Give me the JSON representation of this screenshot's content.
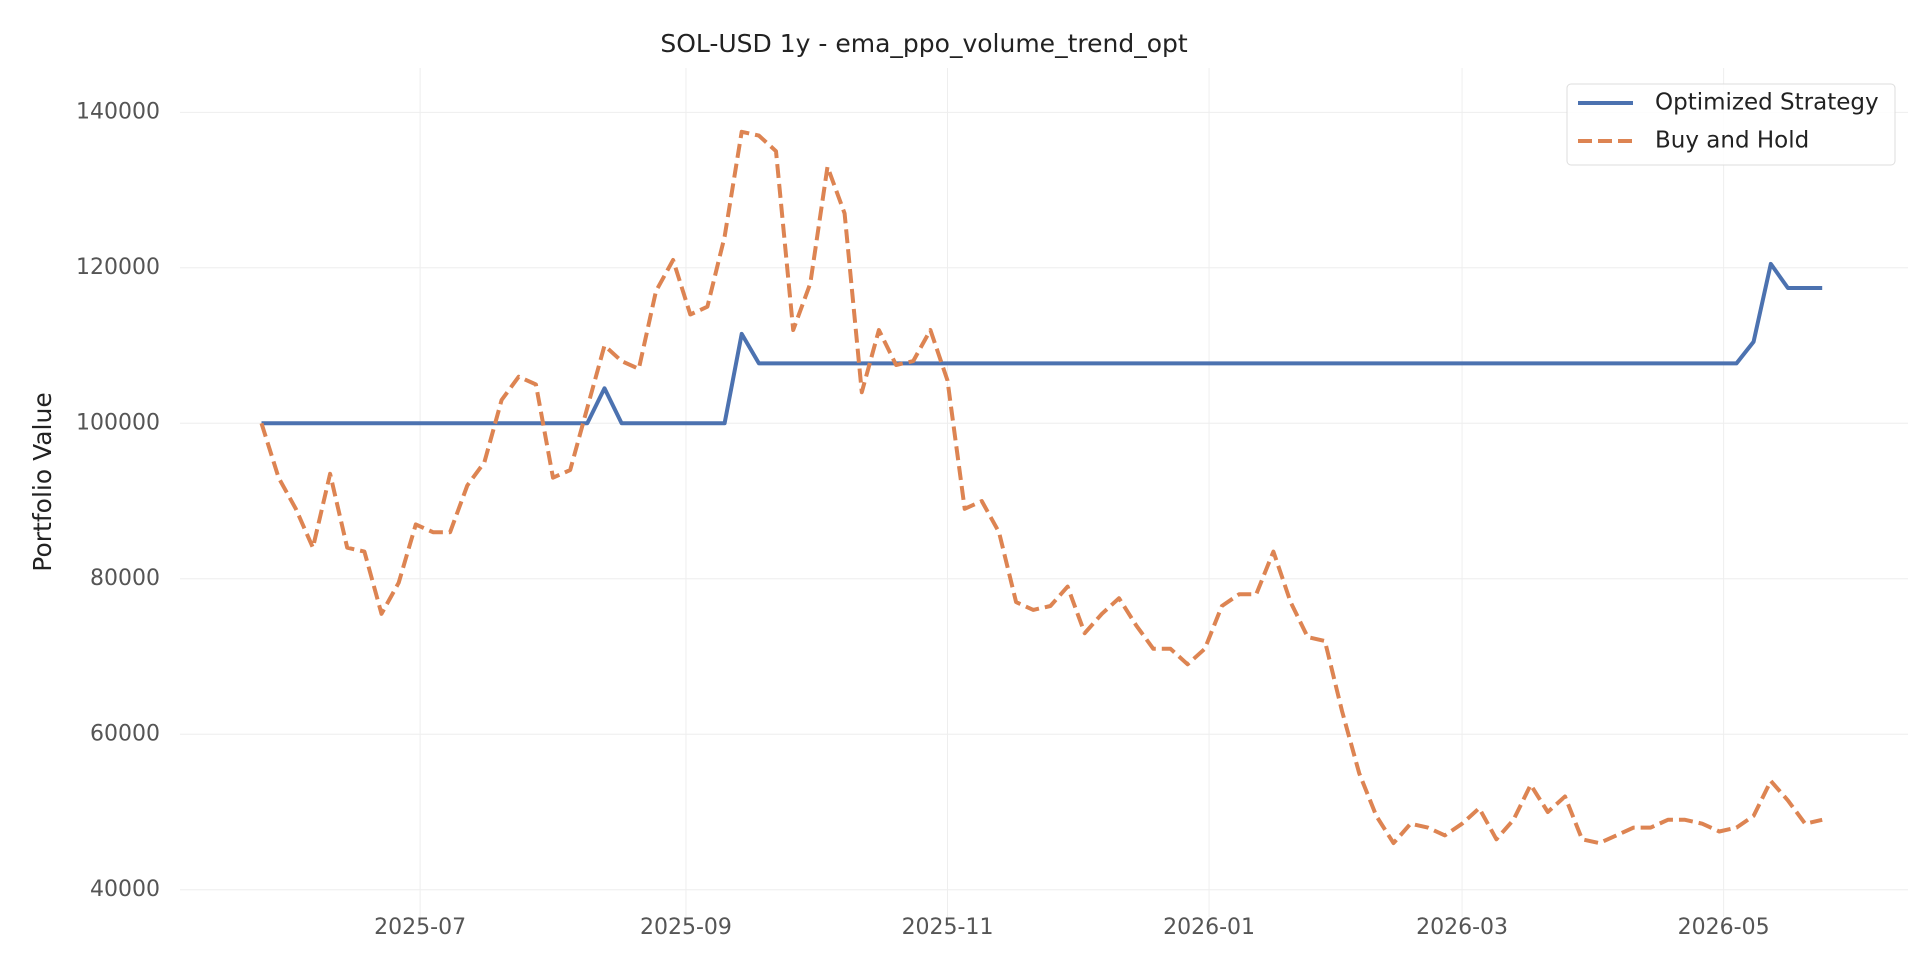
{
  "chart_data": {
    "type": "line",
    "title": "SOL-USD 1y - ema_ppo_volume_trend_opt",
    "y_label": "Portfolio Value",
    "x": [
      "2025-05-25",
      "2025-05-29",
      "2025-06-02",
      "2025-06-06",
      "2025-06-10",
      "2025-06-14",
      "2025-06-18",
      "2025-06-22",
      "2025-06-26",
      "2025-06-30",
      "2025-07-04",
      "2025-07-08",
      "2025-07-12",
      "2025-07-16",
      "2025-07-20",
      "2025-07-24",
      "2025-07-28",
      "2025-08-01",
      "2025-08-05",
      "2025-08-09",
      "2025-08-13",
      "2025-08-17",
      "2025-08-21",
      "2025-08-25",
      "2025-08-29",
      "2025-09-02",
      "2025-09-06",
      "2025-09-10",
      "2025-09-14",
      "2025-09-18",
      "2025-09-22",
      "2025-09-26",
      "2025-09-30",
      "2025-10-04",
      "2025-10-08",
      "2025-10-12",
      "2025-10-16",
      "2025-10-20",
      "2025-10-24",
      "2025-10-28",
      "2025-11-01",
      "2025-11-05",
      "2025-11-09",
      "2025-11-13",
      "2025-11-17",
      "2025-11-21",
      "2025-11-25",
      "2025-11-29",
      "2025-12-03",
      "2025-12-07",
      "2025-12-11",
      "2025-12-15",
      "2025-12-19",
      "2025-12-23",
      "2025-12-27",
      "2025-12-31",
      "2026-01-04",
      "2026-01-08",
      "2026-01-12",
      "2026-01-16",
      "2026-01-20",
      "2026-01-24",
      "2026-01-28",
      "2026-02-01",
      "2026-02-05",
      "2026-02-09",
      "2026-02-13",
      "2026-02-17",
      "2026-02-21",
      "2026-02-25",
      "2026-03-01",
      "2026-03-05",
      "2026-03-09",
      "2026-03-13",
      "2026-03-17",
      "2026-03-21",
      "2026-03-25",
      "2026-03-29",
      "2026-04-02",
      "2026-04-06",
      "2026-04-10",
      "2026-04-14",
      "2026-04-18",
      "2026-04-22",
      "2026-04-26",
      "2026-04-30",
      "2026-05-04",
      "2026-05-08",
      "2026-05-12",
      "2026-05-16",
      "2026-05-20",
      "2026-05-24"
    ],
    "series": [
      {
        "name": "Optimized Strategy",
        "color": "#4c72b0",
        "linestyle": "solid",
        "values": [
          100000,
          100000,
          100000,
          100000,
          100000,
          100000,
          100000,
          100000,
          100000,
          100000,
          100000,
          100000,
          100000,
          100000,
          100000,
          100000,
          100000,
          100000,
          100000,
          100000,
          104500,
          100000,
          100000,
          100000,
          100000,
          100000,
          100000,
          100000,
          111500,
          107700,
          107700,
          107700,
          107700,
          107700,
          107700,
          107700,
          107700,
          107700,
          107700,
          107700,
          107700,
          107700,
          107700,
          107700,
          107700,
          107700,
          107700,
          107700,
          107700,
          107700,
          107700,
          107700,
          107700,
          107700,
          107700,
          107700,
          107700,
          107700,
          107700,
          107700,
          107700,
          107700,
          107700,
          107700,
          107700,
          107700,
          107700,
          107700,
          107700,
          107700,
          107700,
          107700,
          107700,
          107700,
          107700,
          107700,
          107700,
          107700,
          107700,
          107700,
          107700,
          107700,
          107700,
          107700,
          107700,
          107700,
          107700,
          110500,
          120500,
          117400,
          117400,
          117400
        ]
      },
      {
        "name": "Buy and Hold",
        "color": "#dd8452",
        "linestyle": "dashed",
        "values": [
          100000,
          93000,
          89000,
          84000,
          93500,
          84000,
          83500,
          75500,
          79500,
          87000,
          86000,
          86000,
          92000,
          95000,
          103000,
          106000,
          105000,
          93000,
          94000,
          102000,
          110000,
          108000,
          107000,
          117000,
          121000,
          114000,
          115000,
          124000,
          137500,
          137000,
          135000,
          112000,
          118000,
          133000,
          127000,
          104000,
          112000,
          107500,
          108000,
          112000,
          105500,
          89000,
          90000,
          86000,
          77000,
          76000,
          76500,
          79000,
          73000,
          75500,
          77500,
          74000,
          71000,
          71000,
          69000,
          71000,
          76500,
          78000,
          78000,
          83500,
          77000,
          72500,
          72000,
          63000,
          55000,
          49500,
          46000,
          48500,
          48000,
          47000,
          48500,
          50500,
          46500,
          49000,
          53500,
          50000,
          52000,
          46500,
          46000,
          47000,
          48000,
          48000,
          49000,
          49000,
          48500,
          47500,
          48000,
          49500,
          54000,
          51500,
          48500,
          49000
        ]
      }
    ],
    "xlim": [
      "2025-05-06",
      "2026-06-13"
    ],
    "xticks": [
      {
        "value": "2025-07-01",
        "label": "2025-07"
      },
      {
        "value": "2025-09-01",
        "label": "2025-09"
      },
      {
        "value": "2025-11-01",
        "label": "2025-11"
      },
      {
        "value": "2026-01-01",
        "label": "2026-01"
      },
      {
        "value": "2026-03-01",
        "label": "2026-03"
      },
      {
        "value": "2026-05-01",
        "label": "2026-05"
      }
    ],
    "ylim": [
      36500,
      145700
    ],
    "yticks": [
      40000,
      60000,
      80000,
      100000,
      120000,
      140000
    ],
    "grid": true,
    "legend": "upper right"
  }
}
